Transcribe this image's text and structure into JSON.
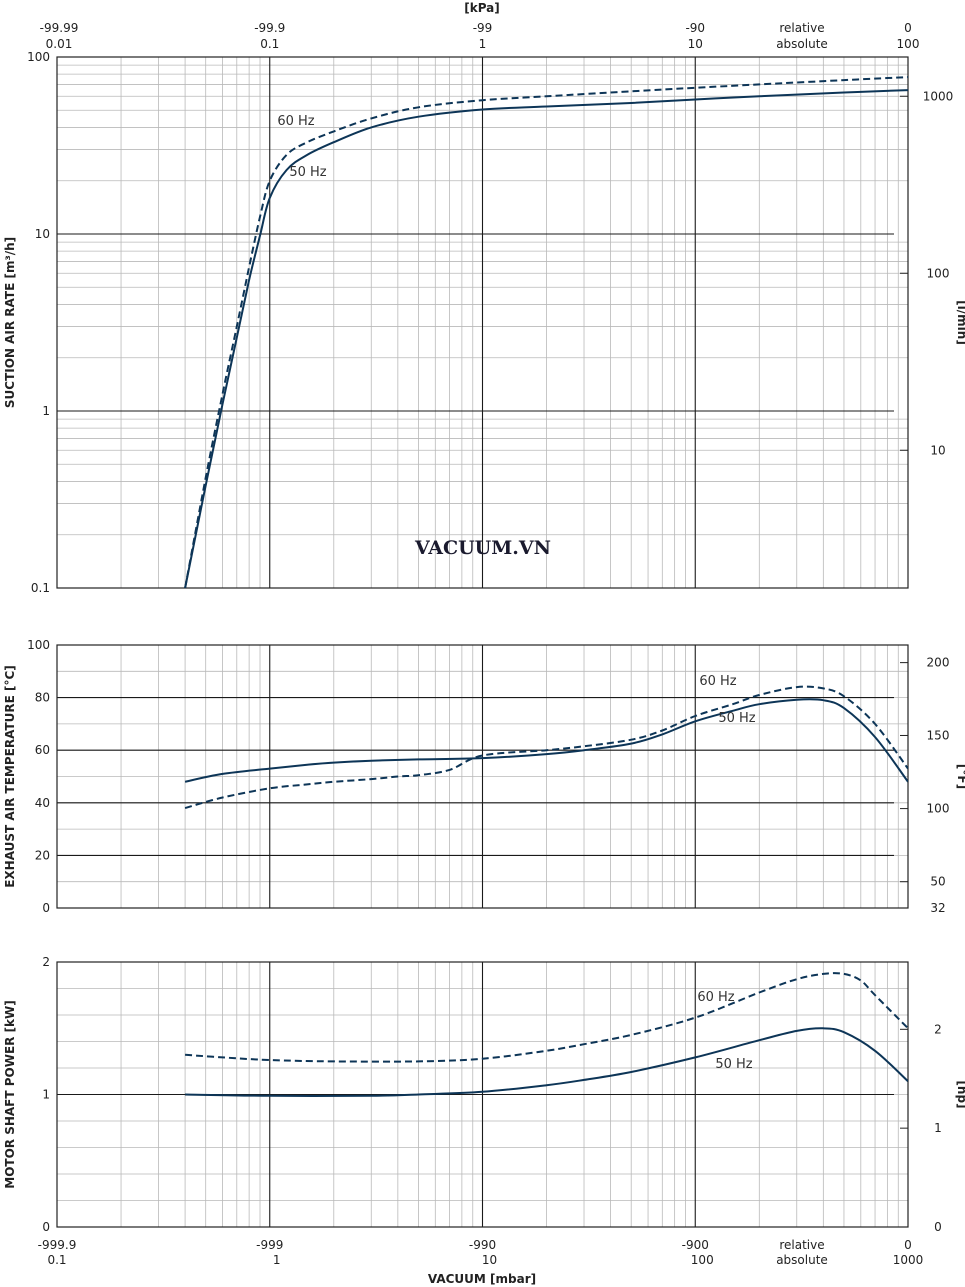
{
  "top_axis": {
    "unit": "[kPa]",
    "ticks": [
      {
        "x": 0.01,
        "rel": "-99.99",
        "abs": "0.01"
      },
      {
        "x": 0.1,
        "rel": "-99.9",
        "abs": "0.1"
      },
      {
        "x": 1,
        "rel": "-99",
        "abs": "1"
      },
      {
        "x": 10,
        "rel": "-90",
        "abs": "10"
      },
      {
        "x": 100,
        "rel": "0",
        "abs": "100"
      }
    ],
    "label_rel": "relative",
    "label_abs": "absolute"
  },
  "bottom_axis": {
    "title": "VACUUM [mbar]",
    "ticks": [
      {
        "x": 0.1,
        "rel": "-999.9",
        "abs": "0.1"
      },
      {
        "x": 1,
        "rel": "-999",
        "abs": "1"
      },
      {
        "x": 10,
        "rel": "-990",
        "abs": "10"
      },
      {
        "x": 100,
        "rel": "-900",
        "abs": "100"
      },
      {
        "x": 1000,
        "rel": "0",
        "abs": "1000"
      }
    ],
    "label_rel": "relative",
    "label_abs": "absolute"
  },
  "watermark": "VACUUM.VN",
  "colors": {
    "curve": "#0d3557",
    "grid_major": "#1a1a1a",
    "grid_minor": "#b9b9b9"
  },
  "chart_data": [
    {
      "id": "suction",
      "type": "line",
      "xscale": "log",
      "yscale": "log",
      "xlim": [
        0.1,
        1000
      ],
      "ylim": [
        0.1,
        100
      ],
      "ylabel": "SUCTION AIR RATE [m³/h]",
      "y_ticks": [
        "0.1",
        "1",
        "10",
        "100"
      ],
      "y2label": "[l/min]",
      "y2_ticks": [
        {
          "v": 0.6,
          "label": "10"
        },
        {
          "v": 6,
          "label": "100"
        },
        {
          "v": 60,
          "label": "1000"
        }
      ],
      "grid": true,
      "series": [
        {
          "name": "50 Hz",
          "style": "solid",
          "x": [
            0.4,
            0.5,
            0.6,
            0.7,
            0.8,
            0.9,
            1.0,
            1.2,
            1.5,
            2,
            3,
            5,
            10,
            20,
            50,
            100,
            200,
            500,
            1000
          ],
          "y": [
            0.1,
            0.38,
            1.1,
            2.6,
            5.5,
            9.8,
            16,
            23,
            28,
            33,
            40,
            46,
            50.5,
            52.5,
            55,
            57.5,
            60,
            63,
            65
          ]
        },
        {
          "name": "60 Hz",
          "style": "dashed",
          "x": [
            0.4,
            0.5,
            0.6,
            0.7,
            0.8,
            0.9,
            1.0,
            1.2,
            1.5,
            2,
            3,
            5,
            10,
            20,
            50,
            100,
            200,
            500,
            1000
          ],
          "y": [
            0.1,
            0.42,
            1.25,
            3.0,
            6.5,
            12.5,
            20,
            28,
            33,
            38,
            45,
            52,
            57,
            60,
            64,
            67,
            70,
            74,
            77
          ]
        }
      ]
    },
    {
      "id": "temperature",
      "type": "line",
      "xscale": "log",
      "xlim": [
        0.1,
        1000
      ],
      "ylim": [
        0,
        100
      ],
      "ylabel": "EXHAUST AIR TEMPERATURE [°C]",
      "y_ticks": [
        0,
        20,
        40,
        60,
        80,
        100
      ],
      "y2label": "[°F]",
      "y2_ticks": [
        {
          "v": 0,
          "label": "32"
        },
        {
          "v": 10,
          "label": "50"
        },
        {
          "v": 37.8,
          "label": "100"
        },
        {
          "v": 65.6,
          "label": "150"
        },
        {
          "v": 93.3,
          "label": "200"
        }
      ],
      "grid": true,
      "series": [
        {
          "name": "50 Hz",
          "style": "solid",
          "x": [
            0.4,
            0.6,
            1,
            1.5,
            2,
            3,
            5,
            10,
            20,
            30,
            50,
            70,
            100,
            150,
            200,
            300,
            400,
            500,
            700,
            1000
          ],
          "y": [
            48,
            51,
            53,
            54.5,
            55.3,
            56,
            56.5,
            57,
            58.5,
            60,
            62.5,
            66,
            71,
            75,
            77.5,
            79.2,
            79,
            76,
            65,
            48
          ]
        },
        {
          "name": "60 Hz",
          "style": "dashed",
          "x": [
            0.4,
            0.6,
            1,
            1.5,
            2,
            3,
            4,
            5,
            7,
            10,
            20,
            30,
            50,
            70,
            100,
            150,
            200,
            300,
            400,
            500,
            700,
            1000
          ],
          "y": [
            38,
            42,
            45.5,
            47,
            48,
            49,
            50,
            50.5,
            52.5,
            58,
            60,
            61.5,
            64,
            67.5,
            73,
            77.5,
            81,
            84,
            83.5,
            80.5,
            70,
            53
          ]
        }
      ]
    },
    {
      "id": "power",
      "type": "line",
      "xscale": "log",
      "xlim": [
        0.1,
        1000
      ],
      "ylim": [
        0,
        2
      ],
      "ylabel": "MOTOR SHAFT POWER [kW]",
      "y_ticks": [
        "0",
        "1",
        "2"
      ],
      "y2label": "[hp]",
      "y2_ticks": [
        {
          "v": 0,
          "label": "0"
        },
        {
          "v": 0.746,
          "label": "1"
        },
        {
          "v": 1.492,
          "label": "2"
        }
      ],
      "grid": true,
      "series": [
        {
          "name": "50 Hz",
          "style": "solid",
          "x": [
            0.4,
            1,
            3,
            5,
            10,
            20,
            30,
            50,
            100,
            200,
            300,
            400,
            500,
            700,
            1000
          ],
          "y": [
            1.0,
            0.99,
            0.99,
            1.0,
            1.02,
            1.07,
            1.11,
            1.17,
            1.28,
            1.41,
            1.48,
            1.5,
            1.47,
            1.33,
            1.1
          ]
        },
        {
          "name": "60 Hz",
          "style": "dashed",
          "x": [
            0.4,
            0.6,
            1,
            2,
            5,
            10,
            20,
            30,
            50,
            100,
            200,
            300,
            400,
            500,
            600,
            700,
            1000
          ],
          "y": [
            1.3,
            1.28,
            1.26,
            1.25,
            1.25,
            1.27,
            1.33,
            1.38,
            1.45,
            1.58,
            1.77,
            1.87,
            1.91,
            1.91,
            1.86,
            1.75,
            1.5
          ]
        }
      ]
    }
  ]
}
